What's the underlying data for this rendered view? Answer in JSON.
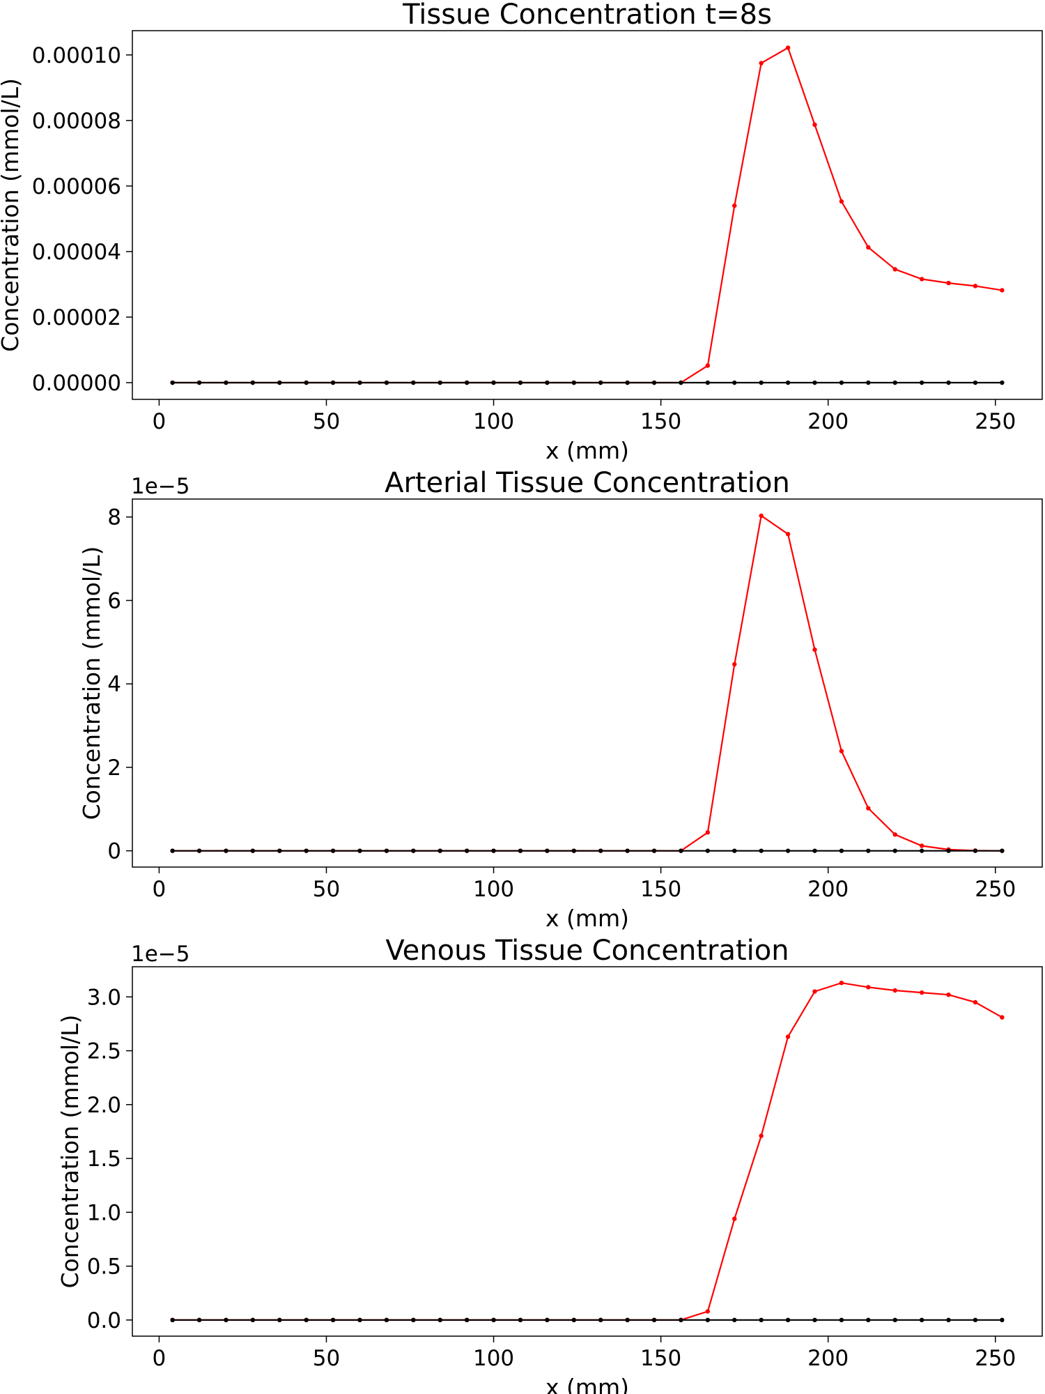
{
  "chart_data": [
    {
      "type": "line",
      "title": "Tissue Concentration t=8s",
      "xlabel": "x (mm)",
      "ylabel": "Concentration (mmol/L)",
      "xlim": [
        -8,
        264
      ],
      "ylim": [
        -5.1e-06,
        0.0001074
      ],
      "xticks": [
        0,
        50,
        100,
        150,
        200,
        250
      ],
      "xtick_labels": [
        "0",
        "50",
        "100",
        "150",
        "200",
        "250"
      ],
      "yticks": [
        0,
        2e-05,
        4e-05,
        6e-05,
        8e-05,
        0.0001
      ],
      "ytick_labels": [
        "0.00000",
        "0.00002",
        "0.00004",
        "0.00006",
        "0.00008",
        "0.00010"
      ],
      "offset_text": "",
      "grid": false,
      "x": [
        4,
        12,
        20,
        28,
        36,
        44,
        52,
        60,
        68,
        76,
        84,
        92,
        100,
        108,
        116,
        124,
        132,
        140,
        148,
        156,
        164,
        172,
        180,
        188,
        196,
        204,
        212,
        220,
        228,
        236,
        244,
        252
      ],
      "series": [
        {
          "color": "#ff0000",
          "values": [
            0,
            0,
            0,
            0,
            0,
            0,
            0,
            0,
            0,
            0,
            0,
            0,
            0,
            0,
            0,
            0,
            0,
            0,
            0,
            0,
            5.2e-06,
            5.4e-05,
            9.75e-05,
            0.0001022,
            7.87e-05,
            5.53e-05,
            4.13e-05,
            3.46e-05,
            3.16e-05,
            3.04e-05,
            2.95e-05,
            2.82e-05
          ]
        },
        {
          "color": "#000000",
          "values": [
            0,
            0,
            0,
            0,
            0,
            0,
            0,
            0,
            0,
            0,
            0,
            0,
            0,
            0,
            0,
            0,
            0,
            0,
            0,
            0,
            0,
            0,
            0,
            0,
            0,
            0,
            0,
            0,
            0,
            0,
            0,
            0
          ]
        }
      ]
    },
    {
      "type": "line",
      "title": "Arterial Tissue Concentration",
      "xlabel": "x (mm)",
      "ylabel": "Concentration (mmol/L)",
      "xlim": [
        -8,
        264
      ],
      "ylim": [
        -3.9e-06,
        8.43e-05
      ],
      "xticks": [
        0,
        50,
        100,
        150,
        200,
        250
      ],
      "xtick_labels": [
        "0",
        "50",
        "100",
        "150",
        "200",
        "250"
      ],
      "yticks": [
        0,
        2e-05,
        4e-05,
        6e-05,
        8e-05
      ],
      "ytick_labels": [
        "0",
        "2",
        "4",
        "6",
        "8"
      ],
      "offset_text": "1e−5",
      "grid": false,
      "x": [
        4,
        12,
        20,
        28,
        36,
        44,
        52,
        60,
        68,
        76,
        84,
        92,
        100,
        108,
        116,
        124,
        132,
        140,
        148,
        156,
        164,
        172,
        180,
        188,
        196,
        204,
        212,
        220,
        228,
        236,
        244,
        252
      ],
      "series": [
        {
          "color": "#ff0000",
          "values": [
            0,
            0,
            0,
            0,
            0,
            0,
            0,
            0,
            0,
            0,
            0,
            0,
            0,
            0,
            0,
            0,
            0,
            0,
            0,
            0,
            4.4e-06,
            4.47e-05,
            8.03e-05,
            7.59e-05,
            4.82e-05,
            2.39e-05,
            1.02e-05,
            3.9e-06,
            1.2e-06,
            3e-07,
            5e-08,
            0
          ]
        },
        {
          "color": "#000000",
          "values": [
            0,
            0,
            0,
            0,
            0,
            0,
            0,
            0,
            0,
            0,
            0,
            0,
            0,
            0,
            0,
            0,
            0,
            0,
            0,
            0,
            0,
            0,
            0,
            0,
            0,
            0,
            0,
            0,
            0,
            0,
            0,
            0
          ]
        }
      ]
    },
    {
      "type": "line",
      "title": "Venous Tissue Concentration",
      "xlabel": "x (mm)",
      "ylabel": "Concentration (mmol/L)",
      "xlim": [
        -8,
        264
      ],
      "ylim": [
        -1.5e-06,
        3.28e-05
      ],
      "xticks": [
        0,
        50,
        100,
        150,
        200,
        250
      ],
      "xtick_labels": [
        "0",
        "50",
        "100",
        "150",
        "200",
        "250"
      ],
      "yticks": [
        0,
        5e-06,
        1e-05,
        1.5e-05,
        2e-05,
        2.5e-05,
        3e-05
      ],
      "ytick_labels": [
        "0.0",
        "0.5",
        "1.0",
        "1.5",
        "2.0",
        "2.5",
        "3.0"
      ],
      "offset_text": "1e−5",
      "grid": false,
      "x": [
        4,
        12,
        20,
        28,
        36,
        44,
        52,
        60,
        68,
        76,
        84,
        92,
        100,
        108,
        116,
        124,
        132,
        140,
        148,
        156,
        164,
        172,
        180,
        188,
        196,
        204,
        212,
        220,
        228,
        236,
        244,
        252
      ],
      "series": [
        {
          "color": "#ff0000",
          "values": [
            0,
            0,
            0,
            0,
            0,
            0,
            0,
            0,
            0,
            0,
            0,
            0,
            0,
            0,
            0,
            0,
            0,
            0,
            0,
            0,
            8e-07,
            9.4e-06,
            1.71e-05,
            2.63e-05,
            3.05e-05,
            3.13e-05,
            3.09e-05,
            3.06e-05,
            3.04e-05,
            3.02e-05,
            2.95e-05,
            2.81e-05
          ]
        },
        {
          "color": "#000000",
          "values": [
            0,
            0,
            0,
            0,
            0,
            0,
            0,
            0,
            0,
            0,
            0,
            0,
            0,
            0,
            0,
            0,
            0,
            0,
            0,
            0,
            0,
            0,
            0,
            0,
            0,
            0,
            0,
            0,
            0,
            0,
            0,
            0
          ]
        }
      ]
    }
  ]
}
